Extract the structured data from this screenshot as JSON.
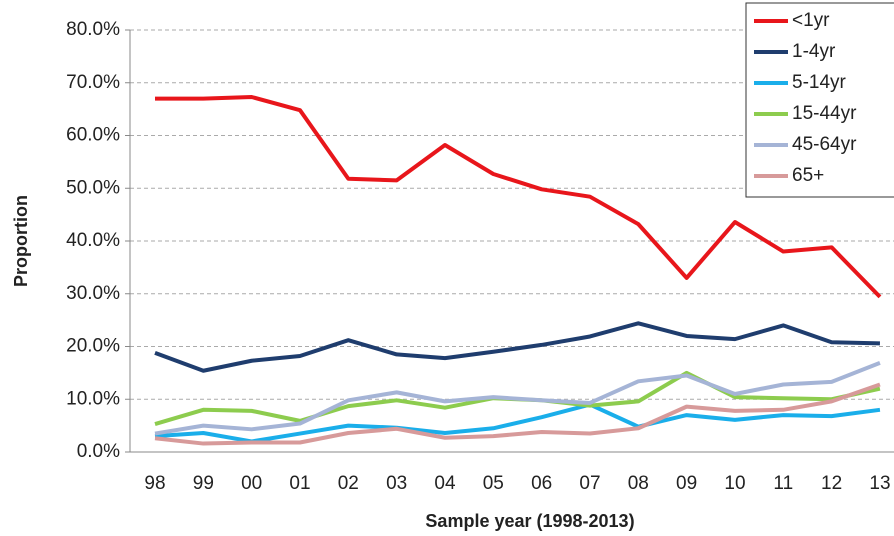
{
  "chart_data": {
    "type": "line",
    "x_label": "Sample year (1998-2013)",
    "y_label": "Proportion",
    "categories": [
      "98",
      "99",
      "00",
      "01",
      "02",
      "03",
      "04",
      "05",
      "06",
      "07",
      "08",
      "09",
      "10",
      "11",
      "12",
      "13"
    ],
    "series": [
      {
        "name": "<1yr",
        "color": "#e8161b",
        "values": [
          67.0,
          67.0,
          67.3,
          64.8,
          51.8,
          51.5,
          58.2,
          52.7,
          49.8,
          48.4,
          43.2,
          33.0,
          43.6,
          38.0,
          38.8,
          29.4
        ]
      },
      {
        "name": "1-4yr",
        "color": "#1f3d6e",
        "values": [
          18.8,
          15.4,
          17.3,
          18.2,
          21.2,
          18.5,
          17.8,
          19.0,
          20.3,
          21.9,
          24.4,
          22.0,
          21.4,
          24.0,
          20.8,
          20.6
        ]
      },
      {
        "name": "5-14yr",
        "color": "#1aaeea",
        "values": [
          3.0,
          3.6,
          2.0,
          3.5,
          5.0,
          4.6,
          3.6,
          4.5,
          6.6,
          9.0,
          4.8,
          7.0,
          6.1,
          7.0,
          6.8,
          8.0
        ]
      },
      {
        "name": "15-44yr",
        "color": "#8dcc4e",
        "values": [
          5.3,
          8.0,
          7.8,
          5.9,
          8.7,
          9.8,
          8.4,
          10.2,
          9.8,
          8.8,
          9.6,
          15.0,
          10.4,
          10.2,
          10.0,
          12.0
        ]
      },
      {
        "name": "45-64yr",
        "color": "#a5b4d6",
        "values": [
          3.5,
          5.0,
          4.3,
          5.4,
          9.8,
          11.3,
          9.6,
          10.4,
          9.8,
          9.3,
          13.4,
          14.5,
          11.0,
          12.8,
          13.3,
          16.9
        ]
      },
      {
        "name": "65+",
        "color": "#d79a9a",
        "values": [
          2.6,
          1.6,
          1.8,
          1.8,
          3.6,
          4.4,
          2.7,
          3.0,
          3.8,
          3.5,
          4.5,
          8.6,
          7.8,
          8.0,
          9.6,
          12.8
        ]
      }
    ],
    "ylim": [
      0,
      80
    ],
    "yticks": [
      {
        "value": 0,
        "label": "0.0%"
      },
      {
        "value": 10,
        "label": "10.0%"
      },
      {
        "value": 20,
        "label": "20.0%"
      },
      {
        "value": 30,
        "label": "30.0%"
      },
      {
        "value": 40,
        "label": "40.0%"
      },
      {
        "value": 50,
        "label": "50.0%"
      },
      {
        "value": 60,
        "label": "60.0%"
      },
      {
        "value": 70,
        "label": "70.0%"
      },
      {
        "value": 80,
        "label": "80.0%"
      }
    ],
    "grid": true,
    "legend": "top-right"
  }
}
